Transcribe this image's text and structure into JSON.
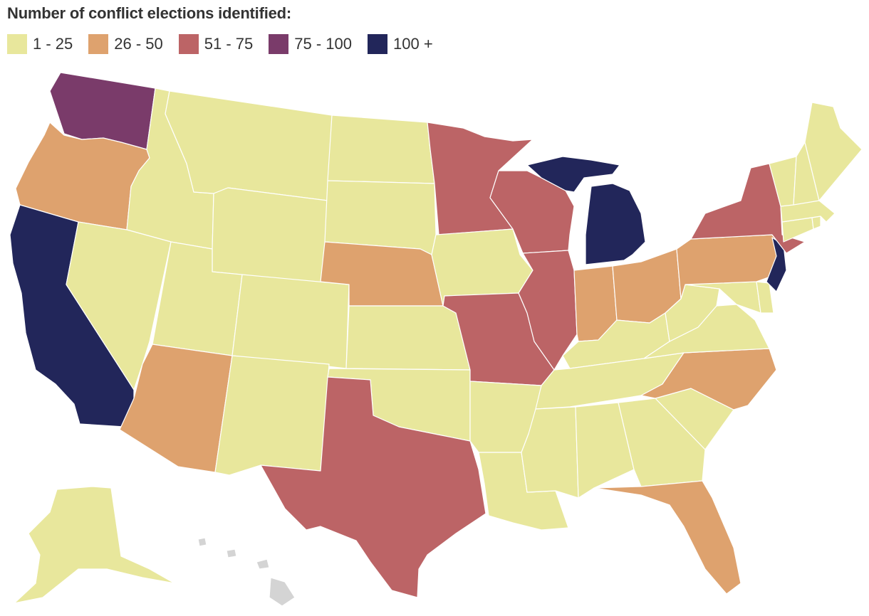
{
  "title": "Number of conflict elections identified:",
  "legend": [
    {
      "label": "1 - 25",
      "color": "#e8e79c"
    },
    {
      "label": "26 - 50",
      "color": "#dea26e"
    },
    {
      "label": "51 - 75",
      "color": "#bc6466"
    },
    {
      "label": "75 - 100",
      "color": "#7a3b6a"
    },
    {
      "label": "100 +",
      "color": "#22265a"
    }
  ],
  "no_data_color": "#d4d4d4",
  "states": [
    {
      "name": "Washington",
      "bin": 3
    },
    {
      "name": "Oregon",
      "bin": 1
    },
    {
      "name": "California",
      "bin": 4
    },
    {
      "name": "Idaho",
      "bin": 0
    },
    {
      "name": "Nevada",
      "bin": 0
    },
    {
      "name": "Montana",
      "bin": 0
    },
    {
      "name": "Wyoming",
      "bin": 0
    },
    {
      "name": "Utah",
      "bin": 0
    },
    {
      "name": "Arizona",
      "bin": 1
    },
    {
      "name": "Colorado",
      "bin": 0
    },
    {
      "name": "New Mexico",
      "bin": 0
    },
    {
      "name": "North Dakota",
      "bin": 0
    },
    {
      "name": "South Dakota",
      "bin": 0
    },
    {
      "name": "Nebraska",
      "bin": 1
    },
    {
      "name": "Kansas",
      "bin": 0
    },
    {
      "name": "Oklahoma",
      "bin": 0
    },
    {
      "name": "Texas",
      "bin": 2
    },
    {
      "name": "Minnesota",
      "bin": 2
    },
    {
      "name": "Iowa",
      "bin": 0
    },
    {
      "name": "Missouri",
      "bin": 2
    },
    {
      "name": "Arkansas",
      "bin": 0
    },
    {
      "name": "Louisiana",
      "bin": 0
    },
    {
      "name": "Wisconsin",
      "bin": 2
    },
    {
      "name": "Illinois",
      "bin": 2
    },
    {
      "name": "Michigan",
      "bin": 4
    },
    {
      "name": "Indiana",
      "bin": 1
    },
    {
      "name": "Ohio",
      "bin": 1
    },
    {
      "name": "Kentucky",
      "bin": 0
    },
    {
      "name": "Tennessee",
      "bin": 0
    },
    {
      "name": "Mississippi",
      "bin": 0
    },
    {
      "name": "Alabama",
      "bin": 0
    },
    {
      "name": "Georgia",
      "bin": 0
    },
    {
      "name": "Florida",
      "bin": 1
    },
    {
      "name": "South Carolina",
      "bin": 0
    },
    {
      "name": "North Carolina",
      "bin": 1
    },
    {
      "name": "Virginia",
      "bin": 0
    },
    {
      "name": "West Virginia",
      "bin": 0
    },
    {
      "name": "Maryland",
      "bin": 0
    },
    {
      "name": "Delaware",
      "bin": 0
    },
    {
      "name": "Pennsylvania",
      "bin": 1
    },
    {
      "name": "New Jersey",
      "bin": 4
    },
    {
      "name": "New York",
      "bin": 2
    },
    {
      "name": "Connecticut",
      "bin": 0
    },
    {
      "name": "Rhode Island",
      "bin": 0
    },
    {
      "name": "Massachusetts",
      "bin": 0
    },
    {
      "name": "Vermont",
      "bin": 0
    },
    {
      "name": "New Hampshire",
      "bin": 0
    },
    {
      "name": "Maine",
      "bin": 0
    },
    {
      "name": "Alaska",
      "bin": 0
    },
    {
      "name": "Hawaii",
      "bin": null
    }
  ]
}
